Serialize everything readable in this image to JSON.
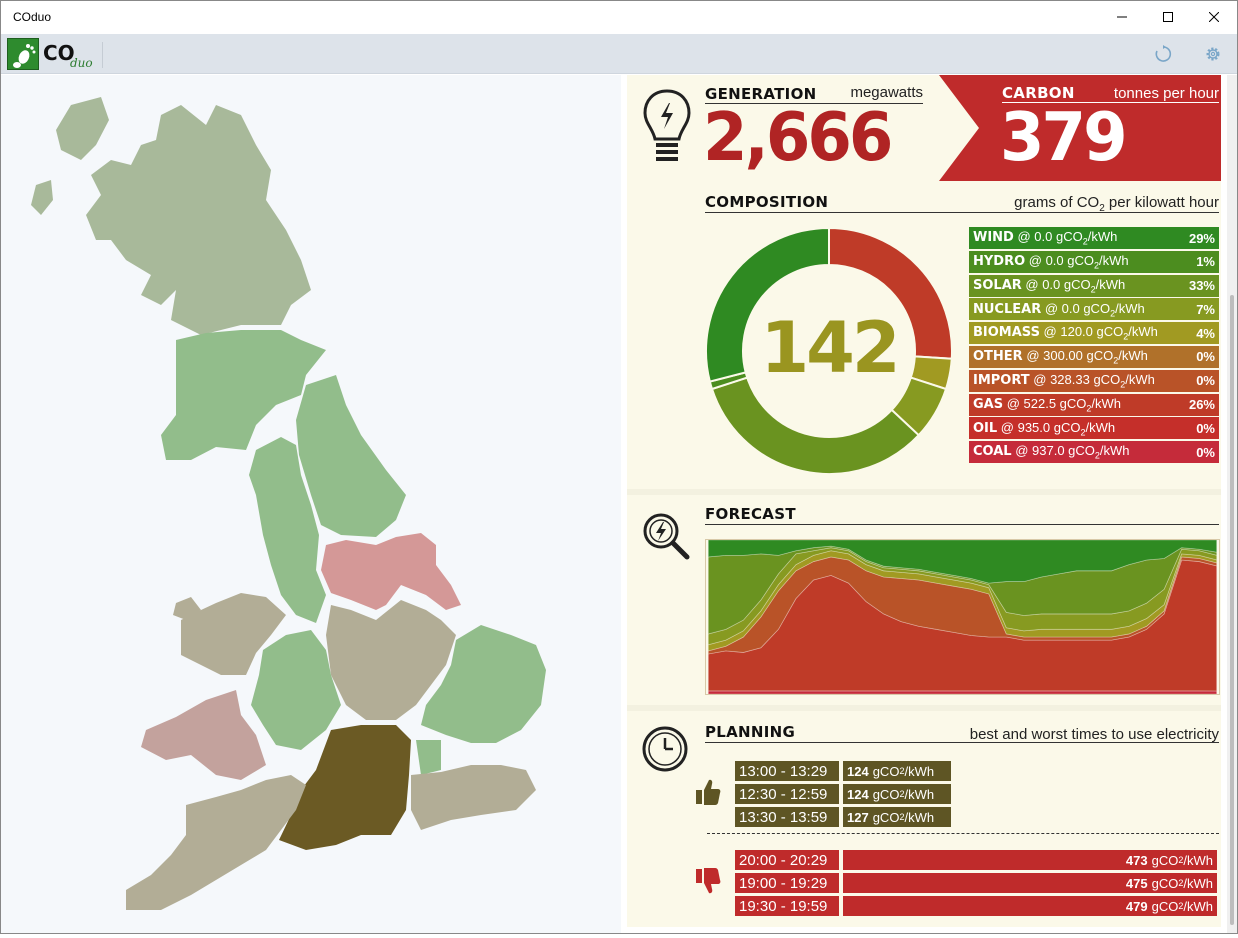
{
  "window": {
    "title": "COduo"
  },
  "toolbar": {
    "logo_main": "CO",
    "logo_sub": "duo",
    "refresh_icon": "refresh-icon",
    "settings_icon": "gear-icon"
  },
  "colors": {
    "wind": "#2f8a22",
    "hydro": "#4c8d1f",
    "solar": "#6a9320",
    "nuclear": "#879a21",
    "biomass": "#a19a22",
    "other": "#b0712a",
    "import": "#b95328",
    "gas": "#bf3b28",
    "oil": "#c52f2a",
    "coal": "#c52b3a",
    "carbon_red": "#bf2b2b",
    "gen_red": "#b02424",
    "good_olive": "#5e5524"
  },
  "generation": {
    "title": "GENERATION",
    "unit": "megawatts",
    "value": "2,666"
  },
  "carbon": {
    "title": "CARBON",
    "unit": "tonnes per hour",
    "value": "379"
  },
  "composition": {
    "title": "COMPOSITION",
    "unit_prefix": "grams of CO",
    "unit_sub": "2",
    "unit_suffix": " per kilowatt hour",
    "intensity": "142",
    "rows": [
      {
        "name": "WIND",
        "rate": " @ 0.0 gCO",
        "rate_suffix": "/kWh",
        "pct": "29%",
        "share": 0.29
      },
      {
        "name": "HYDRO",
        "rate": " @ 0.0 gCO",
        "rate_suffix": "/kWh",
        "pct": "1%",
        "share": 0.01
      },
      {
        "name": "SOLAR",
        "rate": " @ 0.0 gCO",
        "rate_suffix": "/kWh",
        "pct": "33%",
        "share": 0.33
      },
      {
        "name": "NUCLEAR",
        "rate": " @ 0.0 gCO",
        "rate_suffix": "/kWh",
        "pct": "7%",
        "share": 0.07
      },
      {
        "name": "BIOMASS",
        "rate": " @ 120.0 gCO",
        "rate_suffix": "/kWh",
        "pct": "4%",
        "share": 0.04
      },
      {
        "name": "OTHER",
        "rate": " @ 300.00 gCO",
        "rate_suffix": "/kWh",
        "pct": "0%",
        "share": 0.0
      },
      {
        "name": "IMPORT",
        "rate": " @ 328.33 gCO",
        "rate_suffix": "/kWh",
        "pct": "0%",
        "share": 0.0
      },
      {
        "name": "GAS",
        "rate": " @ 522.5 gCO",
        "rate_suffix": "/kWh",
        "pct": "26%",
        "share": 0.26
      },
      {
        "name": "OIL",
        "rate": " @ 935.0 gCO",
        "rate_suffix": "/kWh",
        "pct": "0%",
        "share": 0.0
      },
      {
        "name": "COAL",
        "rate": " @ 937.0 gCO",
        "rate_suffix": "/kWh",
        "pct": "0%",
        "share": 0.0
      }
    ]
  },
  "forecast": {
    "title": "FORECAST"
  },
  "planning": {
    "title": "PLANNING",
    "subtitle": "best and worst times to use electricity",
    "unit_prefix": "gCO",
    "unit_suffix": "/kWh",
    "best": [
      {
        "time": "13:00 - 13:29",
        "value": "124"
      },
      {
        "time": "12:30 - 12:59",
        "value": "124"
      },
      {
        "time": "13:30 - 13:59",
        "value": "127"
      }
    ],
    "worst": [
      {
        "time": "20:00 - 20:29",
        "value": "473"
      },
      {
        "time": "19:00 - 19:29",
        "value": "475"
      },
      {
        "time": "19:30 - 19:59",
        "value": "479"
      }
    ]
  },
  "chart_data": {
    "type": "area",
    "stacked": true,
    "normalized": true,
    "series": [
      {
        "name": "COAL",
        "values": [
          0.02,
          0.02,
          0.02,
          0.02,
          0.02,
          0.02,
          0.02,
          0.02,
          0.02,
          0.02,
          0.02,
          0.02,
          0.02,
          0.02,
          0.02,
          0.02,
          0.02,
          0.02,
          0.02,
          0.02,
          0.02,
          0.02,
          0.02,
          0.02,
          0.02,
          0.02,
          0.02,
          0.02,
          0.02,
          0.02
        ]
      },
      {
        "name": "GAS",
        "values": [
          0.24,
          0.26,
          0.25,
          0.28,
          0.4,
          0.6,
          0.72,
          0.75,
          0.7,
          0.58,
          0.5,
          0.45,
          0.42,
          0.4,
          0.38,
          0.36,
          0.35,
          0.35,
          0.33,
          0.33,
          0.33,
          0.33,
          0.33,
          0.33,
          0.35,
          0.4,
          0.5,
          0.85,
          0.84,
          0.82
        ]
      },
      {
        "name": "IMPORT",
        "values": [
          0.02,
          0.03,
          0.1,
          0.2,
          0.25,
          0.18,
          0.12,
          0.12,
          0.15,
          0.2,
          0.24,
          0.28,
          0.3,
          0.3,
          0.3,
          0.3,
          0.28,
          0.02,
          0.02,
          0.02,
          0.02,
          0.02,
          0.02,
          0.02,
          0.02,
          0.02,
          0.02,
          0.02,
          0.02,
          0.02
        ]
      },
      {
        "name": "BIOMASS",
        "values": [
          0.04,
          0.04,
          0.04,
          0.04,
          0.04,
          0.04,
          0.04,
          0.04,
          0.04,
          0.04,
          0.04,
          0.04,
          0.04,
          0.04,
          0.04,
          0.04,
          0.04,
          0.04,
          0.04,
          0.05,
          0.05,
          0.05,
          0.05,
          0.05,
          0.05,
          0.05,
          0.04,
          0.02,
          0.02,
          0.02
        ]
      },
      {
        "name": "NUCLEAR",
        "values": [
          0.07,
          0.07,
          0.07,
          0.07,
          0.07,
          0.07,
          0.03,
          0.02,
          0.02,
          0.02,
          0.02,
          0.02,
          0.02,
          0.02,
          0.02,
          0.02,
          0.02,
          0.1,
          0.1,
          0.1,
          0.1,
          0.1,
          0.1,
          0.1,
          0.1,
          0.1,
          0.1,
          0.03,
          0.03,
          0.03
        ]
      },
      {
        "name": "SOLAR",
        "values": [
          0.5,
          0.48,
          0.42,
          0.3,
          0.12,
          0.02,
          0.02,
          0.01,
          0.01,
          0.01,
          0.01,
          0.01,
          0.01,
          0.01,
          0.01,
          0.01,
          0.01,
          0.2,
          0.22,
          0.24,
          0.26,
          0.28,
          0.28,
          0.28,
          0.3,
          0.28,
          0.2,
          0.01,
          0.01,
          0.02
        ]
      },
      {
        "name": "WIND",
        "values": [
          0.11,
          0.1,
          0.1,
          0.09,
          0.1,
          0.07,
          0.05,
          0.04,
          0.06,
          0.13,
          0.17,
          0.18,
          0.19,
          0.21,
          0.23,
          0.25,
          0.28,
          0.27,
          0.27,
          0.24,
          0.22,
          0.2,
          0.2,
          0.2,
          0.16,
          0.13,
          0.12,
          0.05,
          0.06,
          0.08
        ]
      }
    ]
  }
}
